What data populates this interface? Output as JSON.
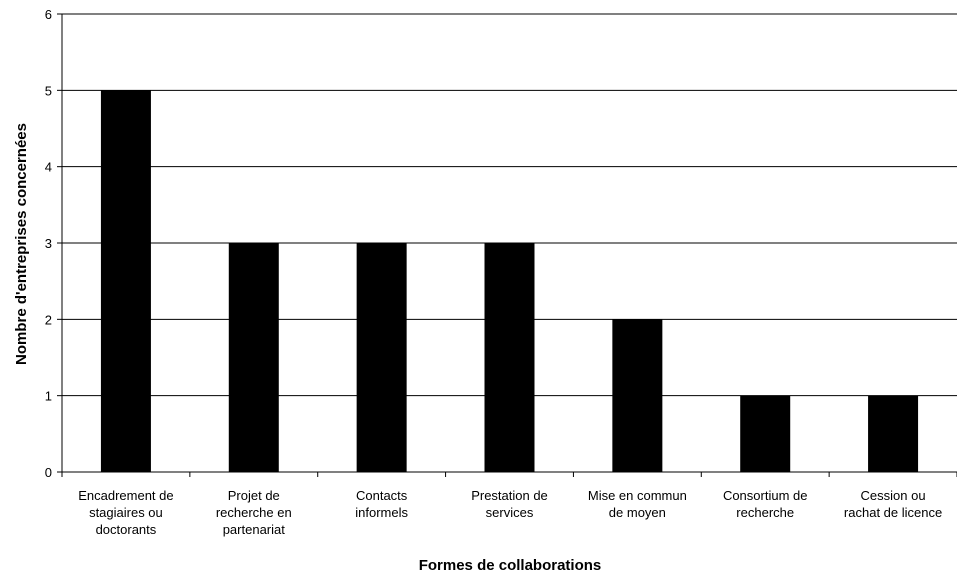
{
  "chart_data": {
    "type": "bar",
    "title": "",
    "xlabel": "Formes de collaborations",
    "ylabel": "Nombre d'entreprises concernées",
    "ylim": [
      0,
      6
    ],
    "yticks": [
      0,
      1,
      2,
      3,
      4,
      5,
      6
    ],
    "grid": true,
    "bar_color": "#000000",
    "categories": [
      [
        "Encadrement de",
        "stagiaires ou",
        "doctorants"
      ],
      [
        "Projet de",
        "recherche en",
        "partenariat"
      ],
      [
        "Contacts",
        "informels"
      ],
      [
        "Prestation de",
        "services"
      ],
      [
        "Mise en commun",
        "de moyen"
      ],
      [
        "Consortium de",
        "recherche"
      ],
      [
        "Cession ou",
        "rachat de licence"
      ]
    ],
    "values": [
      5,
      3,
      3,
      3,
      2,
      1,
      1
    ]
  }
}
